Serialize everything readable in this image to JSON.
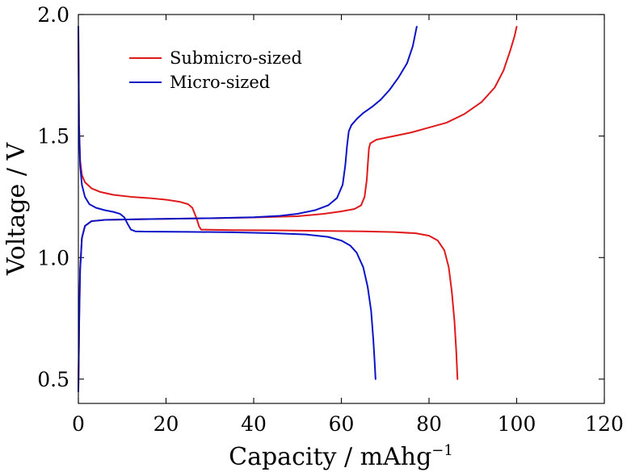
{
  "chart_data": {
    "type": "line",
    "xlabel": "Capacity / mAhg",
    "xlabel_superscript": "−1",
    "ylabel": "Voltage / V",
    "xlim": [
      0,
      120
    ],
    "ylim": [
      0.4,
      2.0
    ],
    "xticks": [
      0,
      20,
      40,
      60,
      80,
      100,
      120
    ],
    "xtick_labels": [
      "0",
      "20",
      "40",
      "60",
      "80",
      "100",
      "120"
    ],
    "yticks": [
      0.5,
      1.0,
      1.5,
      2.0
    ],
    "ytick_labels": [
      "0.5",
      "1.0",
      "1.5",
      "2.0"
    ],
    "grid": false,
    "legend_position": "top-left",
    "series": [
      {
        "name": "Submicro-sized",
        "color": "#e0191b",
        "curves": [
          {
            "segment": "discharge",
            "points": [
              [
                0.0,
                1.95
              ],
              [
                0.15,
                1.55
              ],
              [
                0.4,
                1.4
              ],
              [
                0.8,
                1.34
              ],
              [
                1.5,
                1.31
              ],
              [
                3.0,
                1.285
              ],
              [
                5.0,
                1.27
              ],
              [
                8.0,
                1.258
              ],
              [
                12.0,
                1.25
              ],
              [
                16.0,
                1.245
              ],
              [
                20.0,
                1.238
              ],
              [
                23.0,
                1.23
              ],
              [
                25.0,
                1.22
              ],
              [
                26.0,
                1.205
              ],
              [
                27.0,
                1.16
              ],
              [
                27.5,
                1.13
              ],
              [
                28.0,
                1.115
              ],
              [
                29.0,
                1.115
              ],
              [
                35.0,
                1.113
              ],
              [
                45.0,
                1.112
              ],
              [
                55.0,
                1.11
              ],
              [
                65.0,
                1.108
              ],
              [
                72.0,
                1.105
              ],
              [
                77.0,
                1.1
              ],
              [
                80.0,
                1.09
              ],
              [
                82.0,
                1.07
              ],
              [
                83.5,
                1.03
              ],
              [
                84.5,
                0.96
              ],
              [
                85.2,
                0.86
              ],
              [
                85.8,
                0.74
              ],
              [
                86.2,
                0.62
              ],
              [
                86.5,
                0.5
              ]
            ]
          },
          {
            "segment": "charge",
            "points": [
              [
                0.0,
                0.45
              ],
              [
                0.2,
                0.75
              ],
              [
                0.4,
                0.95
              ],
              [
                0.8,
                1.08
              ],
              [
                1.5,
                1.13
              ],
              [
                3.0,
                1.15
              ],
              [
                6.0,
                1.155
              ],
              [
                15.0,
                1.158
              ],
              [
                30.0,
                1.162
              ],
              [
                40.0,
                1.165
              ],
              [
                50.0,
                1.17
              ],
              [
                56.0,
                1.18
              ],
              [
                60.0,
                1.19
              ],
              [
                63.0,
                1.2
              ],
              [
                64.5,
                1.215
              ],
              [
                65.3,
                1.25
              ],
              [
                65.8,
                1.32
              ],
              [
                66.1,
                1.4
              ],
              [
                66.3,
                1.45
              ],
              [
                66.6,
                1.47
              ],
              [
                68.0,
                1.485
              ],
              [
                72.0,
                1.5
              ],
              [
                76.0,
                1.515
              ],
              [
                80.0,
                1.535
              ],
              [
                84.0,
                1.555
              ],
              [
                88.0,
                1.59
              ],
              [
                92.0,
                1.64
              ],
              [
                95.0,
                1.7
              ],
              [
                97.0,
                1.77
              ],
              [
                98.5,
                1.85
              ],
              [
                99.5,
                1.91
              ],
              [
                100.0,
                1.95
              ]
            ]
          }
        ]
      },
      {
        "name": "Micro-sized",
        "color": "#0b13c9",
        "curves": [
          {
            "segment": "discharge",
            "points": [
              [
                0.0,
                1.95
              ],
              [
                0.15,
                1.55
              ],
              [
                0.4,
                1.38
              ],
              [
                0.8,
                1.3
              ],
              [
                1.5,
                1.25
              ],
              [
                2.5,
                1.22
              ],
              [
                4.0,
                1.205
              ],
              [
                6.0,
                1.195
              ],
              [
                8.0,
                1.188
              ],
              [
                9.5,
                1.18
              ],
              [
                10.5,
                1.165
              ],
              [
                11.2,
                1.14
              ],
              [
                12.0,
                1.115
              ],
              [
                13.0,
                1.108
              ],
              [
                15.0,
                1.107
              ],
              [
                25.0,
                1.106
              ],
              [
                35.0,
                1.104
              ],
              [
                45.0,
                1.1
              ],
              [
                52.0,
                1.095
              ],
              [
                57.0,
                1.085
              ],
              [
                60.0,
                1.07
              ],
              [
                62.0,
                1.05
              ],
              [
                63.5,
                1.02
              ],
              [
                65.0,
                0.96
              ],
              [
                66.0,
                0.88
              ],
              [
                66.8,
                0.78
              ],
              [
                67.3,
                0.66
              ],
              [
                67.6,
                0.57
              ],
              [
                67.8,
                0.5
              ]
            ]
          },
          {
            "segment": "charge",
            "points": [
              [
                0.0,
                0.45
              ],
              [
                0.2,
                0.75
              ],
              [
                0.4,
                0.95
              ],
              [
                0.8,
                1.08
              ],
              [
                1.5,
                1.13
              ],
              [
                3.0,
                1.15
              ],
              [
                6.0,
                1.155
              ],
              [
                15.0,
                1.158
              ],
              [
                30.0,
                1.162
              ],
              [
                40.0,
                1.166
              ],
              [
                46.0,
                1.172
              ],
              [
                50.0,
                1.18
              ],
              [
                54.0,
                1.195
              ],
              [
                57.0,
                1.215
              ],
              [
                59.0,
                1.245
              ],
              [
                60.3,
                1.3
              ],
              [
                60.9,
                1.38
              ],
              [
                61.3,
                1.46
              ],
              [
                61.7,
                1.52
              ],
              [
                62.3,
                1.545
              ],
              [
                63.5,
                1.57
              ],
              [
                65.0,
                1.595
              ],
              [
                67.0,
                1.62
              ],
              [
                69.0,
                1.65
              ],
              [
                71.0,
                1.69
              ],
              [
                73.0,
                1.74
              ],
              [
                75.0,
                1.8
              ],
              [
                76.3,
                1.87
              ],
              [
                77.2,
                1.95
              ]
            ]
          }
        ]
      }
    ]
  }
}
